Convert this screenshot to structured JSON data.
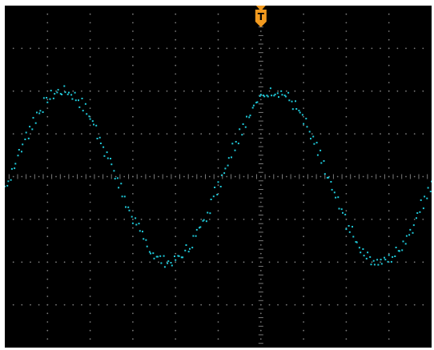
{
  "display": {
    "background": "#000000",
    "frame_color": "#ffffff",
    "grid_color": "#7a7a7a",
    "trace_color": "#1fc8d8",
    "trigger_color": "#f29a1f",
    "divisions_x": 10,
    "divisions_y": 8,
    "subdivisions": 5,
    "grid": true
  },
  "trigger_marker": {
    "label": "T",
    "icon": "trigger-position-icon",
    "position_div": 0
  },
  "trace": {
    "channel": "CH1",
    "style": "dots",
    "period_div": 4.96,
    "amplitude_div": 2.0,
    "offset_div": 0.0,
    "phase_div": -0.95,
    "samples_per_div": 12,
    "jitter_div": 0.12,
    "x_range_div": [
      -6.0,
      4.0
    ],
    "y_range_div": [
      -4.0,
      4.0
    ]
  }
}
